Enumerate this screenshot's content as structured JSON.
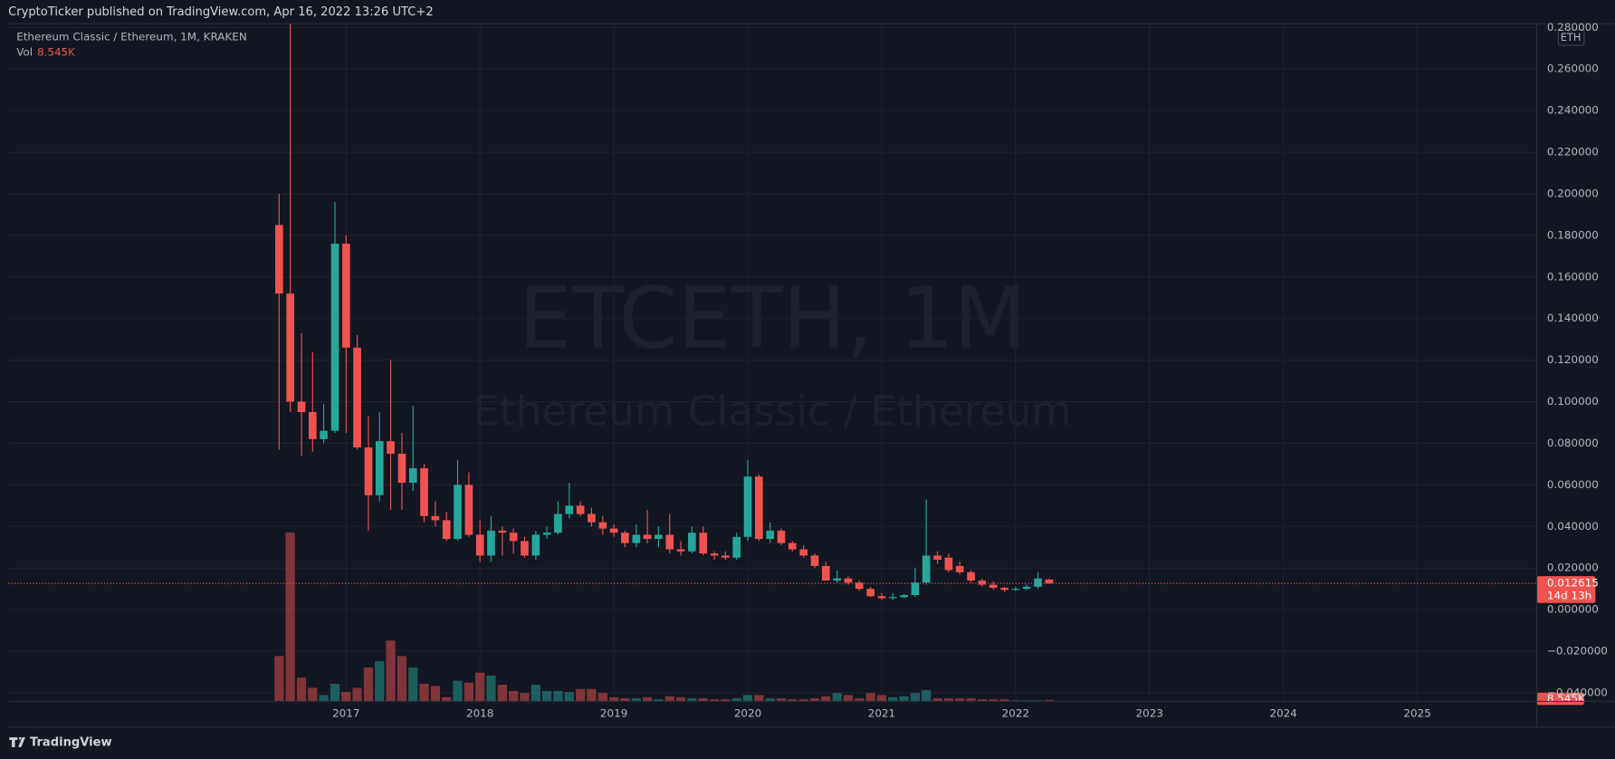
{
  "chart_data": {
    "type": "candlestick",
    "header": "CryptoTicker published on TradingView.com, Apr 16, 2022 13:26 UTC+2",
    "symbol": "Ethereum Classic / Ethereum, 1M, KRAKEN",
    "volume_title": "Vol",
    "volume_last_label": "8.545K",
    "watermark_title": "ETCETH, 1M",
    "watermark_subtitle": "Ethereum Classic / Ethereum",
    "currency": "ETH",
    "countdown": "14d 13h",
    "footer": "TradingView",
    "up_color": "#26a69a",
    "down_color": "#ef5350",
    "grid": true,
    "xlim": [
      2014.477,
      2025.892
    ],
    "xticks": [
      2017,
      2018,
      2019,
      2020,
      2021,
      2022,
      2023,
      2024,
      2025
    ],
    "ylim": [
      -0.0441,
      0.2818
    ],
    "yticks": [
      {
        "value": 0.28,
        "label": "0.280000"
      },
      {
        "value": 0.26,
        "label": "0.260000"
      },
      {
        "value": 0.24,
        "label": "0.240000"
      },
      {
        "value": 0.22,
        "label": "0.220000"
      },
      {
        "value": 0.2,
        "label": "0.200000"
      },
      {
        "value": 0.18,
        "label": "0.180000"
      },
      {
        "value": 0.16,
        "label": "0.160000"
      },
      {
        "value": 0.14,
        "label": "0.140000"
      },
      {
        "value": 0.12,
        "label": "0.120000"
      },
      {
        "value": 0.1,
        "label": "0.100000"
      },
      {
        "value": 0.08,
        "label": "0.080000"
      },
      {
        "value": 0.06,
        "label": "0.060000"
      },
      {
        "value": 0.04,
        "label": "0.040000"
      },
      {
        "value": 0.02,
        "label": "0.020000"
      },
      {
        "value": 0,
        "label": "0.000000"
      },
      {
        "value": -0.02,
        "label": "−0.020000"
      },
      {
        "value": -0.04,
        "label": "−0.040000"
      }
    ],
    "volume_ylim": [
      0,
      1000
    ],
    "x": [
      2016.5,
      2016.583,
      2016.667,
      2016.75,
      2016.833,
      2016.917,
      2017.0,
      2017.083,
      2017.167,
      2017.25,
      2017.333,
      2017.417,
      2017.5,
      2017.583,
      2017.667,
      2017.75,
      2017.833,
      2017.917,
      2018.0,
      2018.083,
      2018.167,
      2018.25,
      2018.333,
      2018.417,
      2018.5,
      2018.583,
      2018.667,
      2018.75,
      2018.833,
      2018.917,
      2019.0,
      2019.083,
      2019.167,
      2019.25,
      2019.333,
      2019.417,
      2019.5,
      2019.583,
      2019.667,
      2019.75,
      2019.833,
      2019.917,
      2020.0,
      2020.083,
      2020.167,
      2020.25,
      2020.333,
      2020.417,
      2020.5,
      2020.583,
      2020.667,
      2020.75,
      2020.833,
      2020.917,
      2021.0,
      2021.083,
      2021.167,
      2021.25,
      2021.333,
      2021.417,
      2021.5,
      2021.583,
      2021.667,
      2021.75,
      2021.833,
      2021.917,
      2022.0,
      2022.083,
      2022.167,
      2022.25
    ],
    "open": [
      0.185,
      0.152,
      0.1,
      0.095,
      0.082,
      0.086,
      0.176,
      0.126,
      0.078,
      0.055,
      0.081,
      0.075,
      0.061,
      0.068,
      0.045,
      0.043,
      0.034,
      0.06,
      0.036,
      0.026,
      0.038,
      0.037,
      0.033,
      0.026,
      0.036,
      0.037,
      0.046,
      0.05,
      0.046,
      0.042,
      0.039,
      0.037,
      0.032,
      0.036,
      0.034,
      0.036,
      0.029,
      0.028,
      0.037,
      0.027,
      0.026,
      0.025,
      0.035,
      0.064,
      0.034,
      0.038,
      0.032,
      0.029,
      0.026,
      0.021,
      0.014,
      0.015,
      0.013,
      0.01,
      0.0065,
      0.0055,
      0.006,
      0.007,
      0.013,
      0.026,
      0.025,
      0.021,
      0.018,
      0.014,
      0.012,
      0.0105,
      0.0095,
      0.01,
      0.011,
      0.0145
    ],
    "high": [
      0.2,
      0.285,
      0.133,
      0.124,
      0.099,
      0.196,
      0.18,
      0.132,
      0.093,
      0.095,
      0.12,
      0.085,
      0.098,
      0.07,
      0.052,
      0.047,
      0.072,
      0.066,
      0.043,
      0.045,
      0.04,
      0.039,
      0.035,
      0.038,
      0.04,
      0.052,
      0.061,
      0.052,
      0.049,
      0.045,
      0.041,
      0.038,
      0.041,
      0.048,
      0.04,
      0.046,
      0.033,
      0.04,
      0.04,
      0.028,
      0.028,
      0.037,
      0.072,
      0.065,
      0.042,
      0.039,
      0.033,
      0.031,
      0.027,
      0.023,
      0.019,
      0.016,
      0.014,
      0.011,
      0.008,
      0.008,
      0.0075,
      0.02,
      0.053,
      0.028,
      0.027,
      0.023,
      0.019,
      0.015,
      0.0135,
      0.011,
      0.011,
      0.012,
      0.018,
      0.0148
    ],
    "low": [
      0.077,
      0.095,
      0.074,
      0.076,
      0.08,
      0.085,
      0.085,
      0.077,
      0.038,
      0.052,
      0.048,
      0.048,
      0.057,
      0.042,
      0.04,
      0.033,
      0.033,
      0.035,
      0.023,
      0.023,
      0.026,
      0.027,
      0.025,
      0.024,
      0.034,
      0.036,
      0.044,
      0.045,
      0.04,
      0.036,
      0.035,
      0.03,
      0.03,
      0.032,
      0.03,
      0.027,
      0.026,
      0.027,
      0.026,
      0.024,
      0.024,
      0.024,
      0.033,
      0.033,
      0.032,
      0.031,
      0.028,
      0.025,
      0.02,
      0.014,
      0.013,
      0.012,
      0.009,
      0.006,
      0.0045,
      0.0045,
      0.0055,
      0.006,
      0.012,
      0.022,
      0.018,
      0.017,
      0.013,
      0.011,
      0.0095,
      0.0085,
      0.009,
      0.0095,
      0.01,
      0.0123
    ],
    "close": [
      0.152,
      0.1,
      0.095,
      0.082,
      0.086,
      0.176,
      0.126,
      0.078,
      0.055,
      0.081,
      0.075,
      0.061,
      0.068,
      0.045,
      0.043,
      0.034,
      0.06,
      0.036,
      0.026,
      0.038,
      0.037,
      0.033,
      0.026,
      0.036,
      0.037,
      0.046,
      0.05,
      0.046,
      0.042,
      0.039,
      0.037,
      0.032,
      0.036,
      0.034,
      0.036,
      0.029,
      0.028,
      0.037,
      0.027,
      0.026,
      0.025,
      0.035,
      0.064,
      0.034,
      0.038,
      0.032,
      0.029,
      0.026,
      0.021,
      0.014,
      0.015,
      0.013,
      0.01,
      0.0065,
      0.0055,
      0.006,
      0.007,
      0.013,
      0.026,
      0.024,
      0.019,
      0.018,
      0.014,
      0.012,
      0.0105,
      0.0095,
      0.01,
      0.011,
      0.015,
      0.012615
    ],
    "volume": [
      268,
      1000,
      140,
      80,
      37,
      104,
      55,
      80,
      200,
      238,
      360,
      268,
      200,
      104,
      91,
      24,
      122,
      110,
      170,
      152,
      98,
      61,
      49,
      98,
      61,
      61,
      55,
      73,
      73,
      49,
      24,
      18,
      18,
      24,
      12,
      30,
      24,
      18,
      18,
      12,
      12,
      18,
      37,
      37,
      18,
      18,
      12,
      12,
      18,
      30,
      49,
      37,
      18,
      49,
      37,
      24,
      30,
      49,
      67,
      18,
      18,
      18,
      18,
      12,
      12,
      12,
      6,
      6,
      6,
      8.545
    ]
  }
}
